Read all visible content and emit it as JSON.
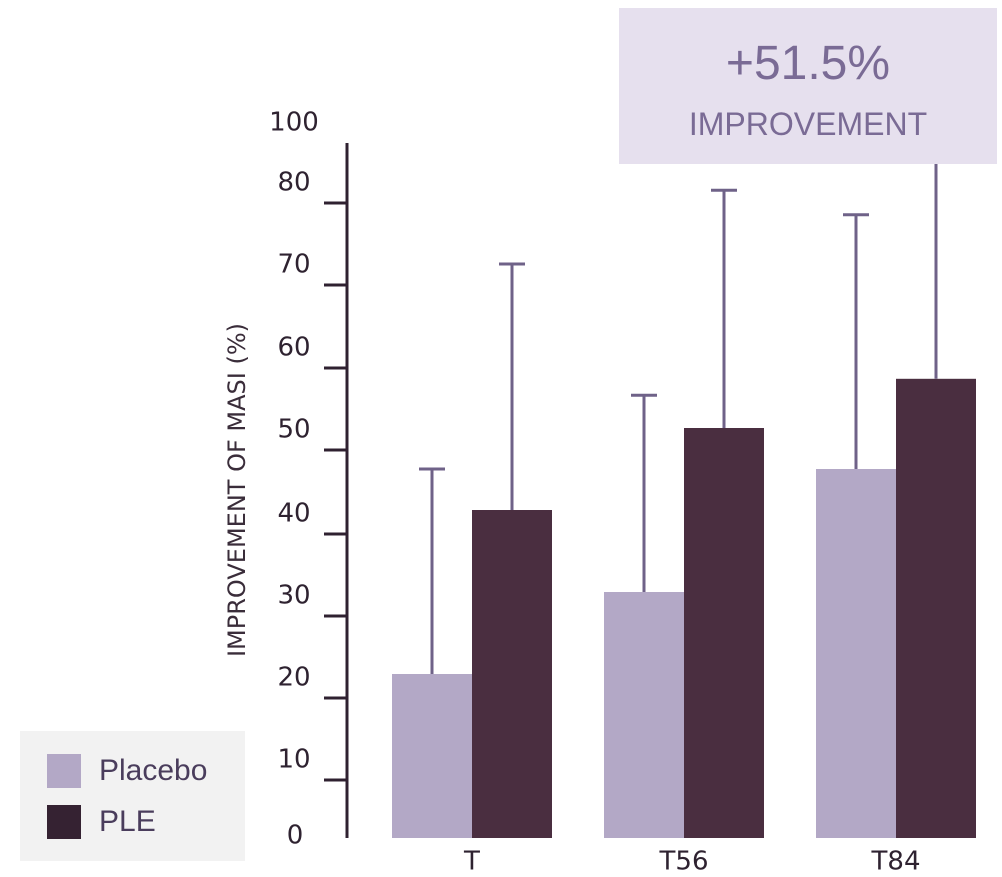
{
  "callout": {
    "value": "+51.5%",
    "label": "IMPROVEMENT"
  },
  "legend": {
    "items": [
      {
        "label": "Placebo",
        "color": "#b3a8c6"
      },
      {
        "label": "PLE",
        "color": "#352232"
      }
    ]
  },
  "colors": {
    "error_bar": "#6f6288",
    "axis": "#2f2130",
    "callout_bg": "#e6e0ee",
    "callout_text": "#7a6b95"
  },
  "chart_data": {
    "type": "bar",
    "ylabel": "IMPROVEMENT OF MASI (%)",
    "xlabel": "",
    "categories": [
      "T",
      "T56",
      "T84"
    ],
    "y_tick_labels": [
      "0",
      "10",
      "20",
      "30",
      "40",
      "50",
      "60",
      "70",
      "80",
      "100"
    ],
    "series": [
      {
        "name": "Placebo",
        "color": "#b3a8c6",
        "values": [
          20,
          30,
          45
        ],
        "error_upper": [
          45,
          54,
          76
        ]
      },
      {
        "name": "PLE",
        "color": "#4a2e40",
        "values": [
          40,
          50,
          56
        ],
        "error_upper": [
          70,
          79,
          91
        ]
      }
    ],
    "grid": false,
    "legend_position": "bottom-left"
  }
}
